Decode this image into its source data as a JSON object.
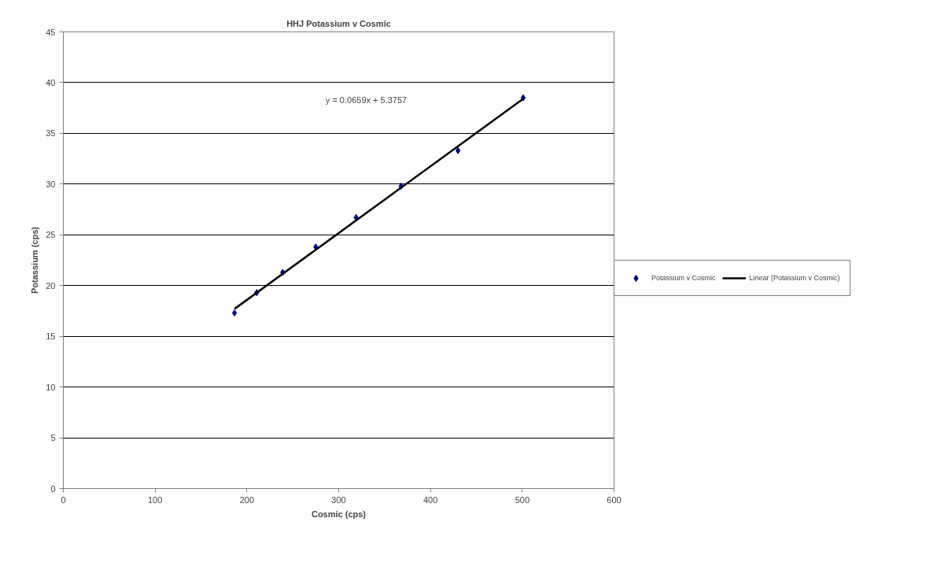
{
  "chart_data": {
    "type": "scatter",
    "title": "HHJ Potassium v Cosmic",
    "xlabel": "Cosmic (cps)",
    "ylabel": "Potassium (cps)",
    "series": [
      {
        "name": "Potassium v Cosmic",
        "color": "#000080",
        "marker": "diamond",
        "x": [
          186.5,
          210.7,
          239,
          275,
          319,
          368,
          430,
          501
        ],
        "values": [
          17.3,
          19.3,
          21.3,
          23.8,
          26.7,
          29.8,
          33.3,
          38.5
        ]
      },
      {
        "name": "Linear (Potassium v Cosmic)",
        "type": "line",
        "color": "#000000",
        "line_style": "solid",
        "x": [
          186.5,
          501
        ],
        "values": [
          17.7,
          38.4
        ]
      }
    ],
    "annotations": [
      "y = 0.0659x + 5.3757"
    ],
    "xlim": [
      0,
      600
    ],
    "ylim": [
      0,
      45
    ],
    "xticks": [
      0,
      100,
      200,
      300,
      400,
      500,
      600
    ],
    "yticks": [
      0,
      5,
      10,
      15,
      20,
      25,
      30,
      35,
      40,
      45
    ],
    "grid": "y",
    "legend": "right"
  }
}
